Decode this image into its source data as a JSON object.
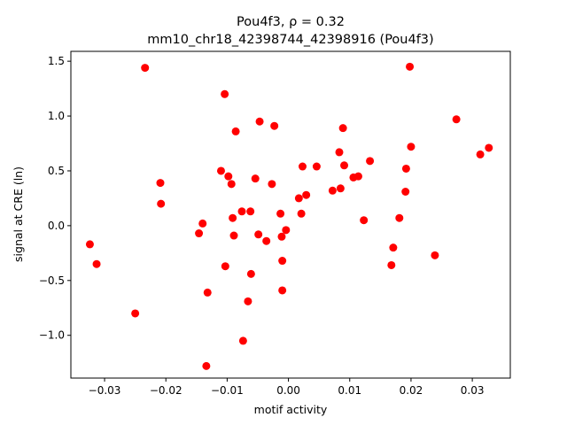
{
  "chart_data": {
    "type": "scatter",
    "title_line1": "Pou4f3, ρ = 0.32",
    "title_line2": "mm10_chr18_42398744_42398916 (Pou4f3)",
    "xlabel": "motif activity",
    "ylabel": "signal at CRE (ln)",
    "xlim": [
      -0.0355,
      0.0362
    ],
    "ylim": [
      -1.39,
      1.59
    ],
    "xticks": [
      {
        "value": -0.03,
        "label": "−0.03"
      },
      {
        "value": -0.02,
        "label": "−0.02"
      },
      {
        "value": -0.01,
        "label": "−0.01"
      },
      {
        "value": 0.0,
        "label": "0.00"
      },
      {
        "value": 0.01,
        "label": "0.01"
      },
      {
        "value": 0.02,
        "label": "0.02"
      },
      {
        "value": 0.03,
        "label": "0.03"
      }
    ],
    "yticks": [
      {
        "value": -1.0,
        "label": "−1.0"
      },
      {
        "value": -0.5,
        "label": "−0.5"
      },
      {
        "value": 0.0,
        "label": "0.0"
      },
      {
        "value": 0.5,
        "label": "0.5"
      },
      {
        "value": 1.0,
        "label": "1.0"
      },
      {
        "value": 1.5,
        "label": "1.5"
      }
    ],
    "grid": false,
    "marker_color": "#ff0000",
    "points": [
      {
        "x": -0.0324,
        "y": -0.17
      },
      {
        "x": -0.0313,
        "y": -0.35
      },
      {
        "x": -0.025,
        "y": -0.8
      },
      {
        "x": -0.0234,
        "y": 1.44
      },
      {
        "x": -0.0209,
        "y": 0.39
      },
      {
        "x": -0.0208,
        "y": 0.2
      },
      {
        "x": -0.0146,
        "y": -0.07
      },
      {
        "x": -0.014,
        "y": 0.02
      },
      {
        "x": -0.0134,
        "y": -1.28
      },
      {
        "x": -0.0132,
        "y": -0.61
      },
      {
        "x": -0.011,
        "y": 0.5
      },
      {
        "x": -0.0104,
        "y": 1.2
      },
      {
        "x": -0.0103,
        "y": -0.37
      },
      {
        "x": -0.0098,
        "y": 0.45
      },
      {
        "x": -0.0093,
        "y": 0.38
      },
      {
        "x": -0.0091,
        "y": 0.07
      },
      {
        "x": -0.0089,
        "y": -0.09
      },
      {
        "x": -0.0086,
        "y": 0.86
      },
      {
        "x": -0.0076,
        "y": 0.13
      },
      {
        "x": -0.0074,
        "y": -1.05
      },
      {
        "x": -0.0066,
        "y": -0.69
      },
      {
        "x": -0.0062,
        "y": 0.13
      },
      {
        "x": -0.0061,
        "y": -0.44
      },
      {
        "x": -0.0054,
        "y": 0.43
      },
      {
        "x": -0.0049,
        "y": -0.08
      },
      {
        "x": -0.0047,
        "y": 0.95
      },
      {
        "x": -0.0036,
        "y": -0.14
      },
      {
        "x": -0.0027,
        "y": 0.38
      },
      {
        "x": -0.0023,
        "y": 0.91
      },
      {
        "x": -0.0013,
        "y": 0.11
      },
      {
        "x": -0.0011,
        "y": -0.1
      },
      {
        "x": -0.001,
        "y": -0.32
      },
      {
        "x": -0.001,
        "y": -0.59
      },
      {
        "x": -0.0004,
        "y": -0.04
      },
      {
        "x": 0.0017,
        "y": 0.25
      },
      {
        "x": 0.0021,
        "y": 0.11
      },
      {
        "x": 0.0023,
        "y": 0.54
      },
      {
        "x": 0.0029,
        "y": 0.28
      },
      {
        "x": 0.0046,
        "y": 0.54
      },
      {
        "x": 0.0072,
        "y": 0.32
      },
      {
        "x": 0.0083,
        "y": 0.67
      },
      {
        "x": 0.0085,
        "y": 0.34
      },
      {
        "x": 0.0089,
        "y": 0.89
      },
      {
        "x": 0.0091,
        "y": 0.55
      },
      {
        "x": 0.0106,
        "y": 0.44
      },
      {
        "x": 0.0114,
        "y": 0.45
      },
      {
        "x": 0.0123,
        "y": 0.05
      },
      {
        "x": 0.0133,
        "y": 0.59
      },
      {
        "x": 0.0168,
        "y": -0.36
      },
      {
        "x": 0.0171,
        "y": -0.2
      },
      {
        "x": 0.0181,
        "y": 0.07
      },
      {
        "x": 0.0191,
        "y": 0.31
      },
      {
        "x": 0.0192,
        "y": 0.52
      },
      {
        "x": 0.0198,
        "y": 1.45
      },
      {
        "x": 0.02,
        "y": 0.72
      },
      {
        "x": 0.0239,
        "y": -0.27
      },
      {
        "x": 0.0274,
        "y": 0.97
      },
      {
        "x": 0.0313,
        "y": 0.65
      },
      {
        "x": 0.0327,
        "y": 0.71
      }
    ]
  }
}
